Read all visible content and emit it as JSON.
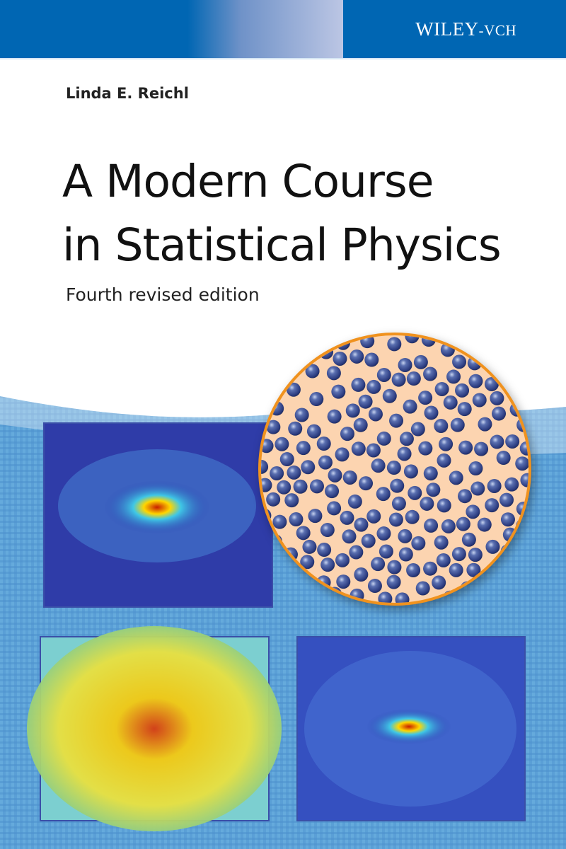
{
  "publisher": {
    "logo_main": "WILEY",
    "logo_suffix": "-VCH"
  },
  "author": "Linda E. Reichl",
  "title_line1": "A Modern Course",
  "title_line2": "in Statistical Physics",
  "edition": "Fourth revised edition",
  "colors": {
    "brand_blue": "#0066b3",
    "circle_border": "#f0921e",
    "circle_fill": "#fcd4b0",
    "sphere": "#3a4f8f"
  },
  "images": [
    "condensate-density-plot-top-left",
    "thermal-cloud-plot-bottom-left",
    "condensate-density-plot-bottom-right",
    "hard-sphere-gas-circle"
  ]
}
